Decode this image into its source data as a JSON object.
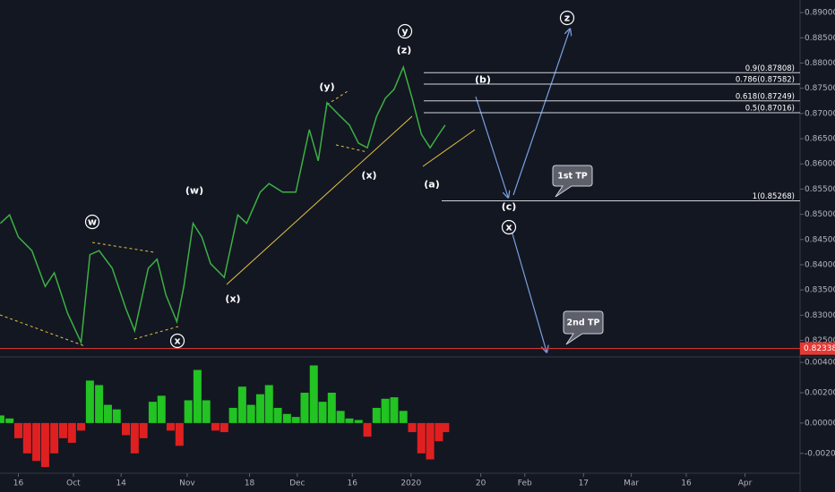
{
  "chart_data": [
    {
      "type": "line",
      "color": "#3cb043",
      "x": [
        10.1,
        12.6,
        15,
        18.7,
        22.3,
        24.8,
        28.4,
        32.1,
        34.5,
        37,
        40.6,
        44.3,
        46.7,
        50.4,
        52.8,
        55.2,
        58.2,
        60.1,
        62.6,
        65,
        67.4,
        71.1,
        74.8,
        77.2,
        80.9,
        83.3,
        87,
        90.6,
        94.3,
        96.7,
        99.1,
        102.8,
        105.2,
        107.7,
        110.1,
        112.6,
        115,
        117.4,
        119.9,
        122.3,
        124.8,
        127.2,
        129.6,
        131.3
      ],
      "values": [
        0.8482,
        0.8499,
        0.8455,
        0.8428,
        0.8357,
        0.8384,
        0.8304,
        0.8246,
        0.842,
        0.8428,
        0.8393,
        0.8313,
        0.8269,
        0.8393,
        0.8411,
        0.834,
        0.8287,
        0.8357,
        0.8482,
        0.8455,
        0.8402,
        0.8375,
        0.8499,
        0.8482,
        0.8544,
        0.8561,
        0.8544,
        0.8544,
        0.8668,
        0.8606,
        0.8721,
        0.8694,
        0.8677,
        0.8641,
        0.8632,
        0.8694,
        0.873,
        0.8748,
        0.8792,
        0.873,
        0.8659,
        0.8632,
        0.8659,
        0.8677
      ],
      "xlim": [
        10,
        228
      ],
      "ylim": [
        0.8219,
        0.8925
      ],
      "yticks": [
        {
          "value": 0.89,
          "label": "0.89000"
        },
        {
          "value": 0.885,
          "label": "0.88500"
        },
        {
          "value": 0.88,
          "label": "0.88000"
        },
        {
          "value": 0.875,
          "label": "0.87500"
        },
        {
          "value": 0.87,
          "label": "0.87000"
        },
        {
          "value": 0.865,
          "label": "0.86500"
        },
        {
          "value": 0.86,
          "label": "0.86000"
        },
        {
          "value": 0.855,
          "label": "0.85500"
        },
        {
          "value": 0.85,
          "label": "0.85000"
        },
        {
          "value": 0.845,
          "label": "0.84500"
        },
        {
          "value": 0.84,
          "label": "0.84000"
        },
        {
          "value": 0.835,
          "label": "0.83500"
        },
        {
          "value": 0.83,
          "label": "0.83000"
        },
        {
          "value": 0.825,
          "label": "0.82500"
        }
      ],
      "levels": [
        {
          "value": 0.87808,
          "label": "0.9(0.87808)"
        },
        {
          "value": 0.87582,
          "label": "0.786(0.87582)"
        },
        {
          "value": 0.87249,
          "label": "0.618(0.87249)"
        },
        {
          "value": 0.87016,
          "label": "0.5(0.87016)"
        },
        {
          "value": 0.85268,
          "label": "1(0.85268)"
        }
      ],
      "last_line": {
        "value": 0.82338,
        "label": "0.82338",
        "color": "#e53935"
      },
      "wave_labels": [
        "w",
        "(w)",
        "x",
        "(x)",
        "(y)",
        "(x)",
        "y",
        "(z)",
        "(b)",
        "(a)",
        "(c)",
        "x",
        "z"
      ],
      "callouts": [
        "1st TP",
        "2nd TP"
      ]
    },
    {
      "type": "bar",
      "positive_color": "#22c322",
      "negative_color": "#e02020",
      "x": [
        10.1,
        12.6,
        15,
        17.4,
        19.9,
        22.3,
        24.8,
        27.2,
        29.6,
        32.1,
        34.5,
        37,
        39.4,
        41.8,
        44.3,
        46.7,
        49.1,
        51.6,
        54,
        56.5,
        58.9,
        61.3,
        63.8,
        66.2,
        68.7,
        71.1,
        73.5,
        76,
        78.4,
        80.9,
        83.3,
        85.7,
        88.2,
        90.6,
        93,
        95.5,
        97.9,
        100.4,
        102.8,
        105.2,
        107.7,
        110.1,
        112.6,
        115,
        117.4,
        119.9,
        122.3,
        124.8,
        127.2,
        129.6,
        131.3
      ],
      "values": [
        0.0005,
        0.0003,
        -0.001,
        -0.002,
        -0.0025,
        -0.0029,
        -0.002,
        -0.001,
        -0.0013,
        -0.0005,
        0.0028,
        0.0025,
        0.0012,
        0.0009,
        -0.0008,
        -0.002,
        -0.001,
        0.0014,
        0.0018,
        -0.0005,
        -0.0015,
        0.0015,
        0.0035,
        0.0015,
        -0.0005,
        -0.0006,
        0.001,
        0.0024,
        0.0012,
        0.0019,
        0.0025,
        0.001,
        0.0006,
        0.0004,
        0.002,
        0.0038,
        0.0014,
        0.002,
        0.0008,
        0.0003,
        0.0002,
        -0.0009,
        0.001,
        0.0016,
        0.0017,
        0.0008,
        -0.0006,
        -0.002,
        -0.0024,
        -0.0012,
        -0.0006
      ],
      "xlim": [
        10,
        228
      ],
      "ylim": [
        -0.00325,
        0.0043
      ],
      "yticks": [
        {
          "value": 0.004,
          "label": "0.00400"
        },
        {
          "value": 0.002,
          "label": "0.00200"
        },
        {
          "value": 0,
          "label": "0.00000"
        },
        {
          "value": -0.002,
          "label": "-0.00200"
        }
      ],
      "xticks": [
        {
          "value": 15,
          "label": "16"
        },
        {
          "value": 30,
          "label": "Oct"
        },
        {
          "value": 43,
          "label": "14"
        },
        {
          "value": 61,
          "label": "Nov"
        },
        {
          "value": 78,
          "label": "18"
        },
        {
          "value": 91,
          "label": "Dec"
        },
        {
          "value": 106,
          "label": "16"
        },
        {
          "value": 122,
          "label": "2020"
        },
        {
          "value": 141,
          "label": "20"
        },
        {
          "value": 153,
          "label": "Feb"
        },
        {
          "value": 169,
          "label": "17"
        },
        {
          "value": 182,
          "label": "Mar"
        },
        {
          "value": 197,
          "label": "16"
        },
        {
          "value": 213,
          "label": "Apr"
        }
      ]
    }
  ]
}
